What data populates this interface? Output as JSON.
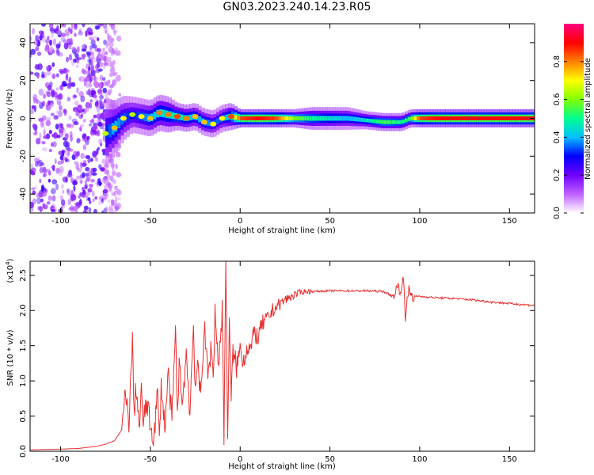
{
  "figure": {
    "title": "GN03.2023.240.14.23.R05"
  },
  "chart_data": [
    {
      "type": "heatmap",
      "xlabel": "Height of straight line (km)",
      "ylabel": "Frequency (Hz)",
      "xlim": [
        -117,
        164
      ],
      "ylim": [
        -50,
        50
      ],
      "xticks": [
        -100,
        -50,
        0,
        50,
        100,
        150
      ],
      "yticks": [
        -40,
        -20,
        0,
        20,
        40
      ],
      "colorbar": {
        "label": "Normalized spectral amplitude",
        "range": [
          0,
          1
        ],
        "ticks": [
          "0.0",
          "0.2",
          "0.4",
          "0.6",
          "0.8"
        ],
        "colors": [
          "#ffffff",
          "#c060ff",
          "#7000ff",
          "#0000ff",
          "#00c0ff",
          "#00ff90",
          "#80ff00",
          "#ffff00",
          "#ff8000",
          "#ff0000",
          "#ff0080"
        ]
      },
      "ridge": {
        "x": [
          -75,
          -70,
          -65,
          -60,
          -55,
          -50,
          -45,
          -40,
          -35,
          -30,
          -25,
          -20,
          -15,
          -10,
          -5,
          0,
          10,
          20,
          30,
          40,
          50,
          60,
          70,
          80,
          90,
          95,
          100,
          110,
          120,
          130,
          140,
          150,
          164
        ],
        "freq": [
          -8,
          -5,
          0,
          2,
          1,
          0,
          3,
          2,
          1,
          0,
          1,
          -2,
          -3,
          0,
          1,
          0,
          0,
          0,
          0,
          0,
          0,
          0,
          -1,
          -2,
          -2,
          0,
          0,
          0,
          0,
          0,
          0,
          0,
          0
        ],
        "amplitude": [
          0.3,
          0.4,
          0.35,
          0.3,
          0.35,
          0.4,
          0.45,
          0.45,
          0.5,
          0.45,
          0.4,
          0.4,
          0.35,
          0.35,
          0.5,
          0.85,
          0.9,
          0.85,
          0.6,
          0.5,
          0.45,
          0.4,
          0.45,
          0.55,
          0.5,
          0.55,
          0.85,
          0.9,
          0.9,
          0.9,
          0.9,
          0.9,
          0.9
        ],
        "width_hz": [
          8,
          6,
          5,
          4,
          4,
          4,
          4,
          4,
          3,
          3,
          3,
          3,
          3,
          3,
          3,
          2,
          2,
          2,
          2,
          2.5,
          2.5,
          2.5,
          2,
          2,
          2,
          2,
          2,
          2,
          2,
          2,
          2,
          2,
          2
        ]
      },
      "noise_region": {
        "x_range": [
          -117,
          -75
        ],
        "freq_range": [
          -50,
          50
        ]
      }
    },
    {
      "type": "line",
      "xlabel": "Height of straight line (km)",
      "ylabel": "SNR (10 * v/v)",
      "yscale_label": "(x10",
      "yscale_exponent": "4",
      "xlim": [
        -117,
        164
      ],
      "ylim": [
        0,
        2.7
      ],
      "xticks": [
        -100,
        -50,
        0,
        50,
        100,
        150
      ],
      "yticks": [
        "0.0",
        "0.5",
        "1.0",
        "1.5",
        "2.0",
        "2.5"
      ],
      "color": "#e83030",
      "series": [
        {
          "x": [
            -117,
            -100,
            -90,
            -80,
            -75,
            -70,
            -66,
            -64,
            -62,
            -60,
            -59,
            -58,
            -56,
            -55,
            -54,
            -52,
            -50,
            -48,
            -46,
            -45,
            -44,
            -42,
            -40,
            -38,
            -36,
            -35,
            -34,
            -32,
            -30,
            -28,
            -26,
            -25,
            -24,
            -22,
            -20,
            -18,
            -16,
            -15,
            -14,
            -12,
            -10,
            -9,
            -8,
            -7,
            -6,
            -5,
            -4,
            -2,
            0,
            2,
            4,
            6,
            8,
            10,
            12,
            14,
            16,
            18,
            20,
            25,
            30,
            35,
            40,
            50,
            60,
            70,
            80,
            85,
            88,
            90,
            91,
            92,
            94,
            96,
            100,
            110,
            120,
            130,
            140,
            150,
            164
          ],
          "y": [
            0.02,
            0.03,
            0.04,
            0.07,
            0.1,
            0.15,
            0.3,
            0.8,
            0.4,
            1.55,
            0.5,
            0.95,
            0.3,
            0.85,
            0.4,
            0.7,
            0.35,
            0.2,
            0.85,
            0.1,
            0.95,
            0.35,
            1.1,
            0.4,
            1.75,
            0.5,
            1.2,
            0.7,
            1.4,
            0.55,
            1.8,
            0.9,
            1.2,
            0.8,
            1.8,
            1.05,
            1.5,
            1.0,
            2.0,
            1.2,
            2.0,
            0.25,
            2.7,
            0.2,
            1.9,
            0.7,
            1.4,
            1.2,
            1.45,
            1.3,
            1.5,
            1.45,
            1.7,
            1.6,
            1.8,
            1.85,
            1.9,
            2.0,
            2.05,
            2.15,
            2.22,
            2.27,
            2.27,
            2.28,
            2.28,
            2.28,
            2.27,
            2.2,
            2.35,
            2.25,
            2.52,
            1.92,
            2.3,
            2.2,
            2.2,
            2.18,
            2.17,
            2.15,
            2.12,
            2.1,
            2.07
          ]
        }
      ]
    }
  ]
}
